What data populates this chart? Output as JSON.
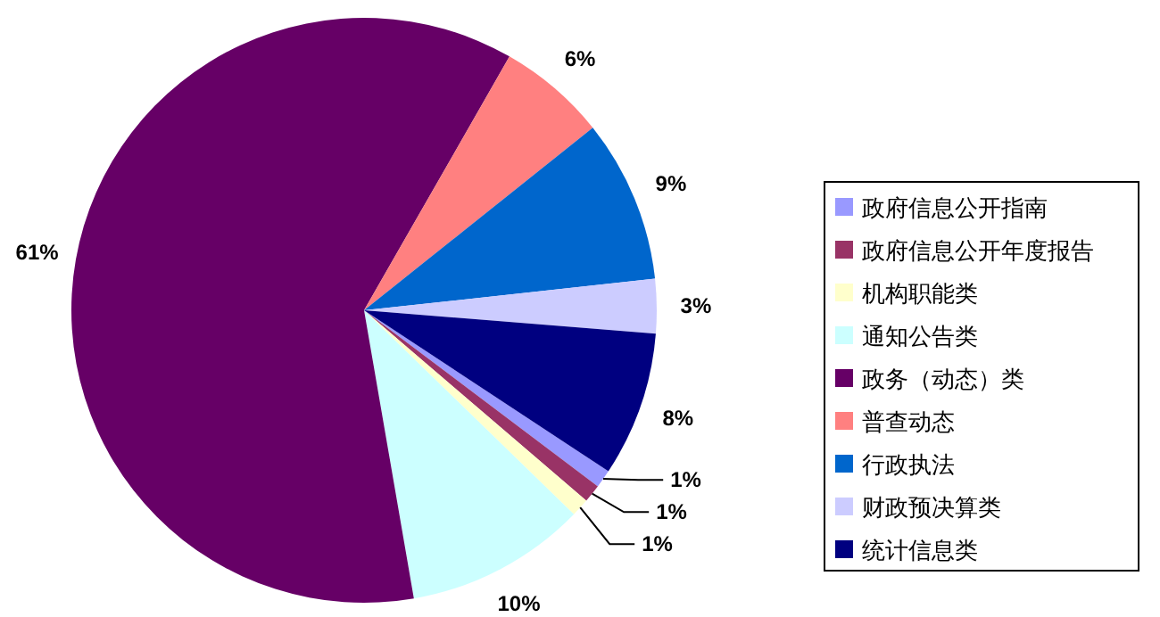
{
  "chart_data": {
    "type": "pie",
    "categories": [
      "政府信息公开指南",
      "政府信息公开年度报告",
      "机构职能类",
      "通知公告类",
      "政务（动态）类",
      "普查动态",
      "行政执法",
      "财政预决算类",
      "统计信息类"
    ],
    "values": [
      1,
      1,
      1,
      10,
      61,
      6,
      9,
      3,
      8
    ],
    "value_labels": [
      "1%",
      "1%",
      "1%",
      "10%",
      "61%",
      "6%",
      "9%",
      "3%",
      "8%"
    ],
    "colors": [
      "#9999ff",
      "#993366",
      "#ffffcc",
      "#ccffff",
      "#660066",
      "#ff8080",
      "#0066cc",
      "#ccccff",
      "#000080"
    ],
    "legend": "right"
  }
}
